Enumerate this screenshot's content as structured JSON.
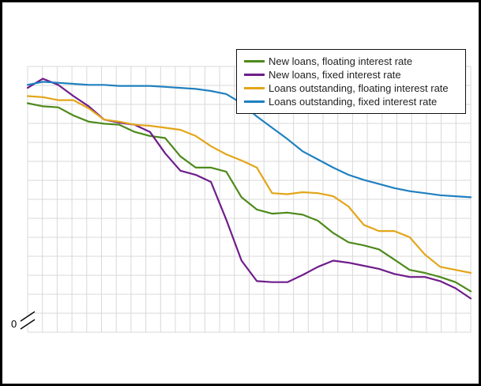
{
  "chart": {
    "zero_label": "0"
  },
  "chart_data": {
    "type": "line",
    "title": "",
    "xlabel": "",
    "ylabel": "",
    "x": [
      1,
      2,
      3,
      4,
      5,
      6,
      7,
      8,
      9,
      10,
      11,
      12,
      13,
      14,
      15,
      16,
      17,
      18,
      19,
      20,
      21,
      22,
      23,
      24,
      25,
      26,
      27,
      28,
      29,
      30
    ],
    "ylim": [
      1.8,
      4.4
    ],
    "grid": true,
    "y_axis_break_at_zero": true,
    "legend_position": "top-right",
    "series": [
      {
        "name": "New loans, floating interest rate",
        "color": "#4e8a1c",
        "values": [
          4.04,
          4.01,
          4.0,
          3.92,
          3.86,
          3.84,
          3.83,
          3.76,
          3.72,
          3.7,
          3.52,
          3.41,
          3.41,
          3.37,
          3.12,
          3.0,
          2.96,
          2.97,
          2.95,
          2.89,
          2.77,
          2.68,
          2.65,
          2.61,
          2.51,
          2.41,
          2.38,
          2.34,
          2.29,
          2.2
        ]
      },
      {
        "name": "New loans, fixed interest rate",
        "color": "#6f1d8b",
        "values": [
          4.19,
          4.28,
          4.22,
          4.11,
          4.01,
          3.88,
          3.85,
          3.83,
          3.76,
          3.55,
          3.38,
          3.34,
          3.27,
          2.9,
          2.5,
          2.3,
          2.29,
          2.29,
          2.36,
          2.44,
          2.5,
          2.48,
          2.45,
          2.42,
          2.37,
          2.34,
          2.34,
          2.3,
          2.23,
          2.13
        ]
      },
      {
        "name": "Loans outstanding, floating interest rate",
        "color": "#e3a51a",
        "values": [
          4.11,
          4.1,
          4.07,
          4.07,
          3.99,
          3.88,
          3.86,
          3.83,
          3.82,
          3.8,
          3.78,
          3.72,
          3.62,
          3.54,
          3.48,
          3.41,
          3.16,
          3.15,
          3.17,
          3.16,
          3.13,
          3.03,
          2.85,
          2.79,
          2.79,
          2.73,
          2.56,
          2.44,
          2.41,
          2.38
        ]
      },
      {
        "name": "Loans outstanding, fixed interest rate",
        "color": "#2080c0",
        "values": [
          4.22,
          4.25,
          4.24,
          4.23,
          4.22,
          4.22,
          4.21,
          4.21,
          4.21,
          4.2,
          4.19,
          4.18,
          4.16,
          4.13,
          4.04,
          3.91,
          3.8,
          3.69,
          3.57,
          3.49,
          3.41,
          3.34,
          3.29,
          3.25,
          3.21,
          3.18,
          3.16,
          3.14,
          3.13,
          3.12
        ]
      }
    ]
  }
}
